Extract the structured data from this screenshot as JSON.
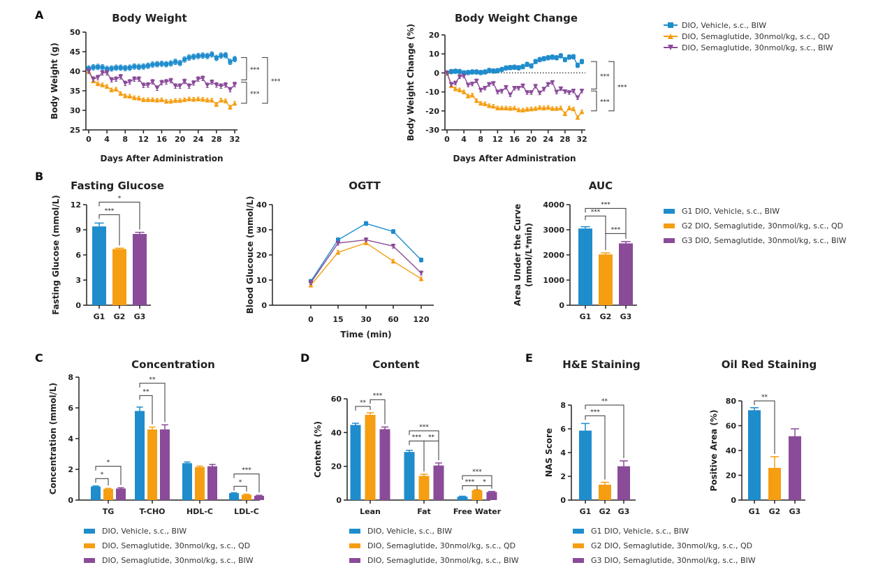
{
  "panels": [
    "A",
    "B",
    "C",
    "D",
    "E"
  ],
  "colors": {
    "vehicle": "#1f8ccc",
    "qd": "#f59e12",
    "biw": "#8a4b99"
  },
  "legends": {
    "A": [
      "DIO, Vehicle, s.c., BIW",
      "DIO, Semaglutide, 30nmol/kg, s.c., QD",
      "DIO, Semaglutide, 30nmol/kg, s.c., BIW"
    ],
    "B": [
      "G1 DIO, Vehicle, s.c., BIW",
      "G2 DIO, Semaglutide, 30nmol/kg, s.c., QD",
      "G3 DIO, Semaglutide, 30nmol/kg, s.c., BIW"
    ],
    "C": [
      "DIO, Vehicle, s.c., BIW",
      "DIO, Semaglutide, 30nmol/kg, s.c., QD",
      "DIO, Semaglutide, 30nmol/kg, s.c., BIW"
    ],
    "D": [
      "DIO, Vehicle, s.c., BIW",
      "DIO, Semaglutide, 30nmol/kg, s.c., QD",
      "DIO, Semaglutide, 30nmol/kg, s.c., BIW"
    ],
    "E": [
      "G1 DIO, Vehicle, s.c., BIW",
      "G2 DIO, Semaglutide, 30nmol/kg, s.c., QD",
      "G3 DIO, Semaglutide, 30nmol/kg, s.c., BIW"
    ]
  },
  "chart_data": [
    {
      "id": "bw",
      "type": "line",
      "title": "Body Weight",
      "xlabel": "Days After Administration",
      "ylabel": [
        "Body Weight (g)"
      ],
      "ylim": [
        25,
        50
      ],
      "yticks": [
        25,
        30,
        35,
        40,
        45,
        50
      ],
      "xlim": [
        0,
        32
      ],
      "xticks": [
        0,
        4,
        8,
        12,
        16,
        20,
        24,
        28,
        32
      ],
      "grid": false,
      "series": [
        {
          "name": "Vehicle",
          "color": "vehicle",
          "marker": "square",
          "err": 0.7,
          "y": [
            40.7,
            41,
            41.1,
            41,
            40.6,
            40.7,
            40.9,
            40.9,
            40.8,
            40.9,
            41.2,
            41.1,
            41.2,
            41.4,
            41.7,
            41.8,
            41.9,
            41.8,
            42,
            42.4,
            42.1,
            43,
            43.5,
            43.7,
            43.9,
            44,
            43.9,
            44.3,
            43.4,
            44,
            44.1,
            42.4,
            43.1
          ]
        },
        {
          "name": "Semaglutide QD",
          "color": "qd",
          "marker": "up",
          "err": 0.5,
          "y": [
            40,
            37.5,
            36.8,
            36.5,
            36.1,
            35.2,
            35.4,
            34.3,
            33.7,
            33.6,
            33.2,
            33.1,
            32.7,
            32.7,
            32.7,
            32.6,
            32.7,
            32.3,
            32.3,
            32.5,
            32.5,
            32.7,
            32.9,
            32.8,
            32.9,
            32.8,
            32.6,
            32.6,
            31.5,
            32.6,
            32.4,
            30.8,
            31.8
          ]
        },
        {
          "name": "Semaglutide BIW",
          "color": "biw",
          "marker": "down",
          "err": 0.6,
          "y": [
            40,
            38,
            38.4,
            39.6,
            39.6,
            37.8,
            38,
            38.6,
            36.9,
            37.3,
            38,
            38,
            36.4,
            36.5,
            37.3,
            35.7,
            37.1,
            37.3,
            37.6,
            36.2,
            36.2,
            37.4,
            36.2,
            37,
            38,
            38.2,
            36.4,
            37.2,
            36.5,
            36.2,
            36.5,
            35.3,
            36.6
          ]
        }
      ],
      "significance": [
        {
          "from": 43.5,
          "to": 37.8,
          "label": "***",
          "level": 0
        },
        {
          "from": 37.2,
          "to": 31.8,
          "label": "***",
          "level": 0
        },
        {
          "from": 43.5,
          "to": 31.8,
          "label": "***",
          "level": 1
        }
      ]
    },
    {
      "id": "bwc",
      "type": "line",
      "title": "Body Weight Change",
      "xlabel": "Days After Administration",
      "ylabel": [
        "Body Weight Change (%)"
      ],
      "ylim": [
        -30,
        20
      ],
      "yticks": [
        -30,
        -20,
        -10,
        0,
        10,
        20
      ],
      "xlim": [
        0,
        32
      ],
      "xticks": [
        0,
        4,
        8,
        12,
        16,
        20,
        24,
        28,
        32
      ],
      "zero_line": true,
      "series": [
        {
          "name": "Vehicle",
          "color": "vehicle",
          "marker": "square",
          "err": 1.2,
          "y": [
            0,
            0.7,
            0.9,
            0.7,
            0,
            0.2,
            0.5,
            0.5,
            0.2,
            0.5,
            1.3,
            1,
            1.2,
            1.8,
            2.6,
            2.8,
            3,
            2.7,
            3.3,
            4.5,
            3.7,
            6,
            7,
            7.5,
            8,
            8.3,
            8,
            9,
            7,
            8.3,
            8.5,
            4,
            6
          ]
        },
        {
          "name": "Semaglutide QD",
          "color": "qd",
          "marker": "up",
          "err": 1,
          "y": [
            0,
            -6.8,
            -8.4,
            -9,
            -10,
            -12.2,
            -11.7,
            -14.6,
            -16,
            -16.3,
            -17.3,
            -17.6,
            -18.5,
            -18.5,
            -18.5,
            -18.7,
            -18.5,
            -19.5,
            -19.6,
            -19.2,
            -19,
            -18.8,
            -18.3,
            -18.5,
            -18.2,
            -18.8,
            -18.8,
            -18.5,
            -21.5,
            -18.5,
            -19,
            -23.5,
            -20.5
          ]
        },
        {
          "name": "Semaglutide BIW",
          "color": "biw",
          "marker": "down",
          "err": 1,
          "y": [
            0,
            -6,
            -5.3,
            -2,
            -1.6,
            -6.3,
            -5.8,
            -4.2,
            -9,
            -8,
            -6,
            -5.5,
            -10,
            -9.6,
            -7.6,
            -11.5,
            -8,
            -8,
            -6.8,
            -10.3,
            -10.3,
            -7,
            -10.5,
            -8.5,
            -6,
            -5,
            -10,
            -8.3,
            -9.8,
            -10.3,
            -9.5,
            -13,
            -9.5
          ]
        }
      ],
      "significance": [
        {
          "from": 6,
          "to": -8.5,
          "label": "***",
          "level": 0
        },
        {
          "from": -9.5,
          "to": -20,
          "label": "***",
          "level": 0
        },
        {
          "from": 6,
          "to": -20,
          "label": "***",
          "level": 1
        }
      ]
    },
    {
      "id": "fg",
      "type": "bar",
      "title": "Fasting Glucose",
      "xlabel": "",
      "ylabel": [
        "Fasting Glucose (mmol/L)"
      ],
      "ylim": [
        0,
        12
      ],
      "yticks": [
        0,
        3,
        6,
        9,
        12
      ],
      "categories": [
        "G1",
        "G2",
        "G3"
      ],
      "values": [
        9.4,
        6.7,
        8.5
      ],
      "errors": [
        0.4,
        0.1,
        0.2
      ],
      "significance": [
        {
          "from": 0,
          "to": 1,
          "y": 10.8,
          "label": "***"
        },
        {
          "from": 0,
          "to": 2,
          "y": 12.3,
          "label": "*"
        }
      ]
    },
    {
      "id": "og",
      "type": "line",
      "title": "OGTT",
      "xlabel": "Time (min)",
      "ylabel": [
        "Blood Glucouce (mmol/L)"
      ],
      "ylim": [
        0,
        40
      ],
      "yticks": [
        0,
        10,
        20,
        30,
        40
      ],
      "categories": [
        "0",
        "15",
        "30",
        "60",
        "120"
      ],
      "series": [
        {
          "name": "Vehicle",
          "color": "vehicle",
          "marker": "square",
          "err": 0.8,
          "y": [
            9.5,
            26,
            32.5,
            29.3,
            18
          ]
        },
        {
          "name": "Semaglutide QD",
          "color": "qd",
          "marker": "up",
          "err": 0.8,
          "y": [
            8,
            21,
            24.8,
            17.5,
            10.5
          ]
        },
        {
          "name": "Semaglutide BIW",
          "color": "biw",
          "marker": "down",
          "err": 0.8,
          "y": [
            9,
            24.7,
            26,
            23.5,
            12.8
          ]
        }
      ]
    },
    {
      "id": "auc",
      "type": "bar",
      "title": "AUC",
      "xlabel": "",
      "ylabel": [
        "Area Under the Curve",
        "(mmol/L*min)"
      ],
      "ylim": [
        0,
        4000
      ],
      "yticks": [
        0,
        1000,
        2000,
        3000,
        4000
      ],
      "categories": [
        "G1",
        "G2",
        "G3"
      ],
      "values": [
        3050,
        2020,
        2460
      ],
      "errors": [
        70,
        60,
        70
      ],
      "significance": [
        {
          "from": 0,
          "to": 1,
          "y": 3550,
          "label": "***"
        },
        {
          "from": 0,
          "to": 2,
          "y": 3850,
          "label": "***"
        },
        {
          "from": 1,
          "to": 2,
          "y": 2850,
          "label": "***"
        }
      ]
    },
    {
      "id": "conc",
      "type": "bar",
      "title": "Concentration",
      "xlabel": "",
      "ylabel": [
        "Concentration (mmol/L)"
      ],
      "ylim": [
        0,
        8
      ],
      "yticks": [
        0,
        2,
        4,
        6,
        8
      ],
      "categories": [
        "TG",
        "T-CHO",
        "HDL-C",
        "LDL-C"
      ],
      "series": [
        {
          "name": "Vehicle",
          "color": "vehicle",
          "values": [
            0.88,
            5.8,
            2.4,
            0.45
          ],
          "errors": [
            0.04,
            0.25,
            0.08,
            0.03
          ]
        },
        {
          "name": "Semaglutide QD",
          "color": "qd",
          "values": [
            0.72,
            4.6,
            2.15,
            0.35
          ],
          "errors": [
            0.04,
            0.15,
            0.06,
            0.03
          ]
        },
        {
          "name": "Semaglutide BIW",
          "color": "biw",
          "values": [
            0.75,
            4.6,
            2.2,
            0.28
          ],
          "errors": [
            0.05,
            0.3,
            0.12,
            0.03
          ]
        }
      ],
      "significance": [
        {
          "from": [
            0,
            0
          ],
          "to": [
            0,
            1
          ],
          "y": 1.4,
          "label": "*"
        },
        {
          "from": [
            0,
            0
          ],
          "to": [
            0,
            2
          ],
          "y": 2.2,
          "label": "*"
        },
        {
          "from": [
            1,
            0
          ],
          "to": [
            1,
            1
          ],
          "y": 6.8,
          "label": "**"
        },
        {
          "from": [
            1,
            0
          ],
          "to": [
            1,
            2
          ],
          "y": 7.6,
          "label": "**"
        },
        {
          "from": [
            3,
            0
          ],
          "to": [
            3,
            1
          ],
          "y": 0.9,
          "label": "*"
        },
        {
          "from": [
            3,
            0
          ],
          "to": [
            3,
            2
          ],
          "y": 1.7,
          "label": "***"
        }
      ]
    },
    {
      "id": "cont",
      "type": "bar",
      "title": "Content",
      "xlabel": "",
      "ylabel": [
        "Content (%)"
      ],
      "ylim": [
        0,
        60
      ],
      "yticks": [
        0,
        20,
        40,
        60
      ],
      "categories": [
        "Lean",
        "Fat",
        "Free Water"
      ],
      "series": [
        {
          "name": "Vehicle",
          "color": "vehicle",
          "values": [
            44.5,
            28.5,
            2
          ],
          "errors": [
            1,
            1,
            0.3
          ]
        },
        {
          "name": "Semaglutide QD",
          "color": "qd",
          "values": [
            50.5,
            14.3,
            5.8
          ],
          "errors": [
            1.2,
            1,
            0.3
          ]
        },
        {
          "name": "Semaglutide BIW",
          "color": "biw",
          "values": [
            42,
            20.5,
            4.8
          ],
          "errors": [
            1.3,
            1.5,
            0.3
          ]
        }
      ],
      "significance": [
        {
          "from": [
            0,
            0
          ],
          "to": [
            0,
            1
          ],
          "y": 55.5,
          "label": "**"
        },
        {
          "from": [
            0,
            1
          ],
          "to": [
            0,
            2
          ],
          "y": 59.5,
          "label": "***"
        },
        {
          "from": [
            1,
            0
          ],
          "to": [
            1,
            1
          ],
          "y": 35,
          "label": "***"
        },
        {
          "from": [
            1,
            1
          ],
          "to": [
            1,
            2
          ],
          "y": 35,
          "label": "**"
        },
        {
          "from": [
            1,
            0
          ],
          "to": [
            1,
            2
          ],
          "y": 41,
          "label": "***"
        },
        {
          "from": [
            2,
            0
          ],
          "to": [
            2,
            1
          ],
          "y": 8.5,
          "label": "***"
        },
        {
          "from": [
            2,
            1
          ],
          "to": [
            2,
            2
          ],
          "y": 8.5,
          "label": "*"
        },
        {
          "from": [
            2,
            0
          ],
          "to": [
            2,
            2
          ],
          "y": 14.5,
          "label": "***"
        }
      ]
    },
    {
      "id": "he",
      "type": "bar",
      "title": "H&E Staining",
      "xlabel": "",
      "ylabel": [
        "NAS Score"
      ],
      "ylim": [
        0,
        8
      ],
      "yticks": [
        0,
        2,
        4,
        6,
        8
      ],
      "categories": [
        "G1",
        "G2",
        "G3"
      ],
      "values": [
        5.85,
        1.3,
        2.85
      ],
      "errors": [
        0.6,
        0.2,
        0.45
      ],
      "significance": [
        {
          "from": 0,
          "to": 1,
          "y": 7.1,
          "label": "***"
        },
        {
          "from": 0,
          "to": 2,
          "y": 8,
          "label": "**"
        }
      ]
    },
    {
      "id": "or",
      "type": "bar",
      "title": "Oil Red Staining",
      "xlabel": "",
      "ylabel": [
        "Positive Area (%)"
      ],
      "ylim": [
        0,
        80
      ],
      "yticks": [
        0,
        20,
        40,
        60,
        80
      ],
      "categories": [
        "G1",
        "G2",
        "G3"
      ],
      "values": [
        72.5,
        26,
        51.5
      ],
      "errors": [
        2,
        9,
        6
      ],
      "significance": [
        {
          "from": 0,
          "to": 1,
          "y": 80,
          "label": "**"
        }
      ]
    }
  ]
}
